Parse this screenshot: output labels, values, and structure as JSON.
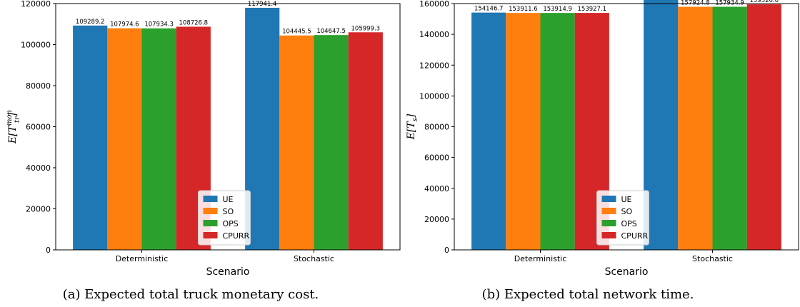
{
  "colors": {
    "UE": "#1f77b4",
    "SO": "#ff7f0e",
    "OPS": "#2ca02c",
    "CPURR": "#d62728"
  },
  "chart_data": [
    {
      "type": "bar",
      "xlabel": "Scenario",
      "ylabel": "E[T_tr^mon]",
      "ylabel_parts": {
        "base": "E[T",
        "sup": "mon",
        "sub": "tr",
        "close": "]"
      },
      "ylim": [
        0,
        120000
      ],
      "yticks": [
        0,
        20000,
        40000,
        60000,
        80000,
        100000,
        120000
      ],
      "categories": [
        "Deterministic",
        "Stochastic"
      ],
      "series": [
        {
          "name": "UE",
          "values": [
            109289.2,
            117941.4
          ]
        },
        {
          "name": "SO",
          "values": [
            107974.6,
            104445.5
          ]
        },
        {
          "name": "OPS",
          "values": [
            107934.3,
            104647.5
          ]
        },
        {
          "name": "CPURR",
          "values": [
            108726.8,
            105999.3
          ]
        }
      ],
      "legend_position": "lower-center",
      "caption": "(a) Expected total truck monetary cost."
    },
    {
      "type": "bar",
      "xlabel": "Scenario",
      "ylabel": "E[T_s]",
      "ylabel_parts": {
        "base": "E[T",
        "sup": "",
        "sub": "s",
        "close": "]"
      },
      "ylim": [
        0,
        160000
      ],
      "yticks": [
        0,
        20000,
        40000,
        60000,
        80000,
        100000,
        120000,
        140000,
        160000
      ],
      "categories": [
        "Deterministic",
        "Stochastic"
      ],
      "series": [
        {
          "name": "UE",
          "values": [
            154146.7,
            167160.7
          ]
        },
        {
          "name": "SO",
          "values": [
            153911.6,
            157924.8
          ]
        },
        {
          "name": "OPS",
          "values": [
            153914.9,
            157934.9
          ]
        },
        {
          "name": "CPURR",
          "values": [
            153927.1,
            159526.0
          ]
        }
      ],
      "legend_position": "lower-center",
      "caption": "(b) Expected total network time."
    }
  ]
}
